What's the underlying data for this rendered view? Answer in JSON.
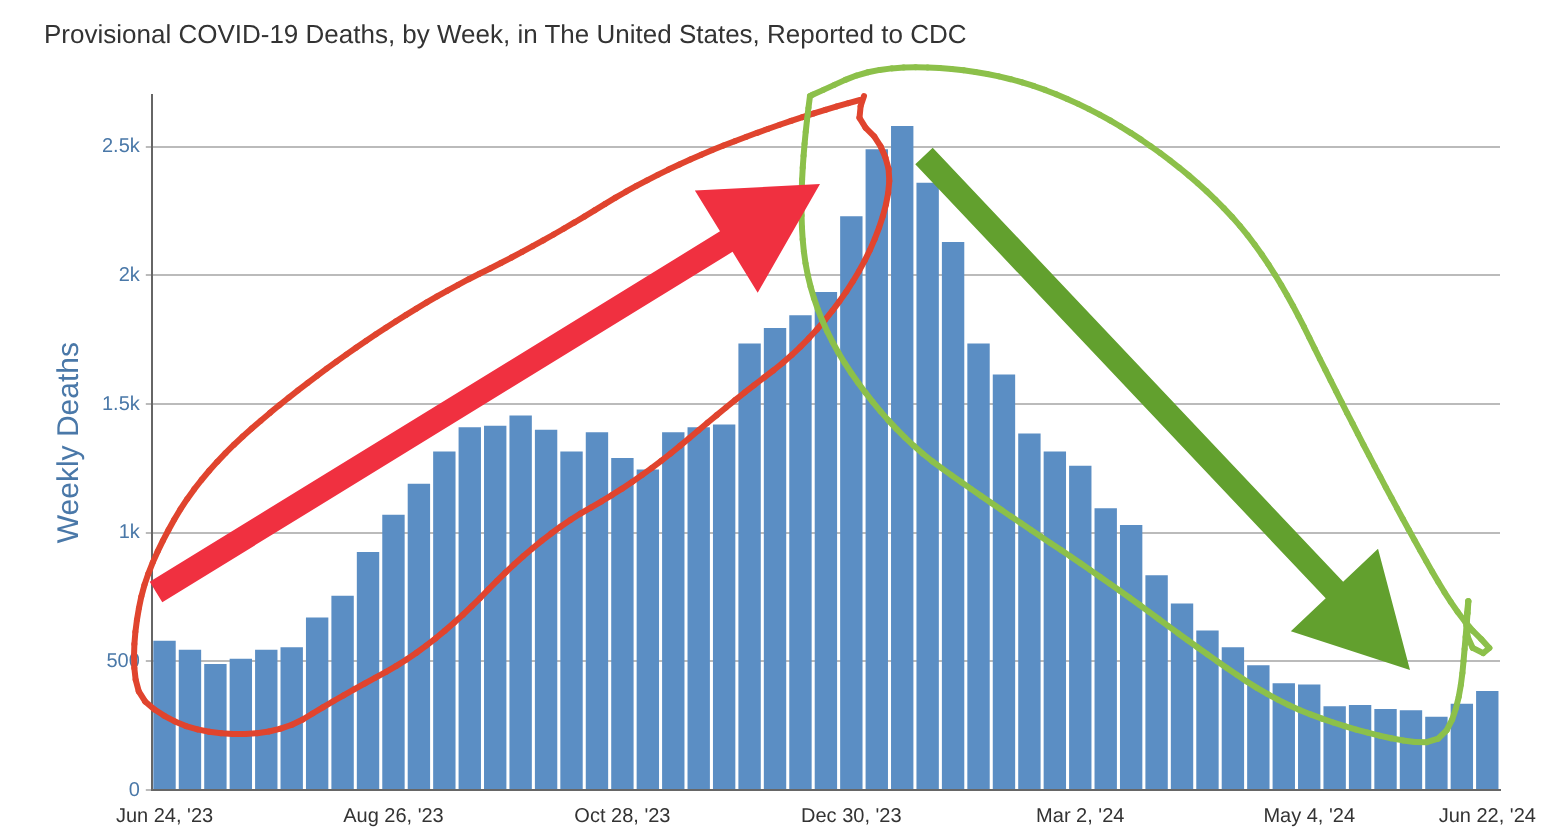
{
  "chart_data": {
    "type": "bar",
    "title": "Provisional COVID-19 Deaths, by Week, in The United States, Reported to CDC",
    "ylabel": "Weekly Deaths",
    "categories": [
      "Jun 24, '23",
      null,
      null,
      null,
      null,
      null,
      null,
      null,
      null,
      "Aug 26, '23",
      null,
      null,
      null,
      null,
      null,
      null,
      null,
      null,
      "Oct 28, '23",
      null,
      null,
      null,
      null,
      null,
      null,
      null,
      null,
      "Dec 30, '23",
      null,
      null,
      null,
      null,
      null,
      null,
      null,
      null,
      "Mar 2, '24",
      null,
      null,
      null,
      null,
      null,
      null,
      null,
      null,
      "May 4, '24",
      null,
      null,
      null,
      null,
      null,
      null,
      "Jun 22, '24"
    ],
    "values": [
      580,
      545,
      490,
      510,
      545,
      555,
      670,
      755,
      925,
      1070,
      1190,
      1315,
      1410,
      1415,
      1455,
      1400,
      1315,
      1390,
      1290,
      1245,
      1390,
      1410,
      1420,
      1735,
      1795,
      1845,
      1935,
      2230,
      2490,
      2580,
      2360,
      2130,
      1735,
      1615,
      1385,
      1315,
      1260,
      1095,
      1030,
      835,
      725,
      620,
      555,
      485,
      415,
      410,
      325,
      330,
      315,
      310,
      285,
      335,
      385
    ],
    "color": "#5b8ec4",
    "ylim": [
      0,
      2700
    ],
    "yticks": [
      0,
      500,
      {
        "value": 1000,
        "label": "1k"
      },
      {
        "value": 1500,
        "label": "1.5k"
      },
      {
        "value": 2000,
        "label": "2k"
      },
      {
        "value": 2500,
        "label": "2.5k"
      }
    ],
    "grid": "y"
  }
}
